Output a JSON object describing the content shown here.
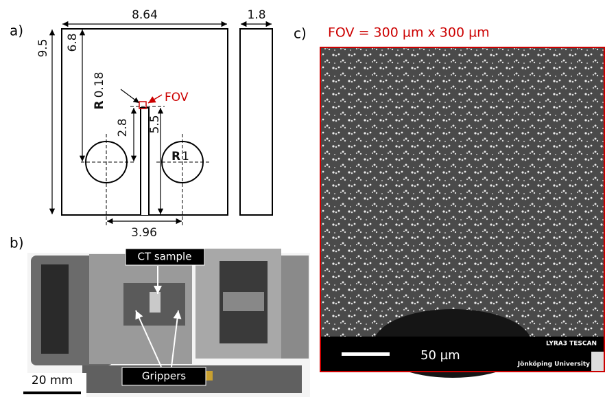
{
  "panel_a": {
    "label": "a)",
    "width": 8.64,
    "thickness": 1.8,
    "height": 9.5,
    "notch_depth": 6.8,
    "notch_radius_prefix": "R",
    "notch_radius": 0.18,
    "fov": "FOV",
    "notch_length": 2.8,
    "hole_offset": 5.5,
    "hole_radius_prefix": "R",
    "hole_radius": 1,
    "hole_spacing": 3.96
  },
  "panel_b": {
    "label": "b)",
    "sample_label": "CT sample",
    "grippers_label": "Grippers",
    "scale_bar": "20 mm"
  },
  "panel_c": {
    "label": "c)",
    "title": "FOV = 300 µm x 300 µm",
    "scale_bar": "50 µm",
    "instrument": "LYRA3 TESCAN",
    "institution": "Jönköping University"
  }
}
